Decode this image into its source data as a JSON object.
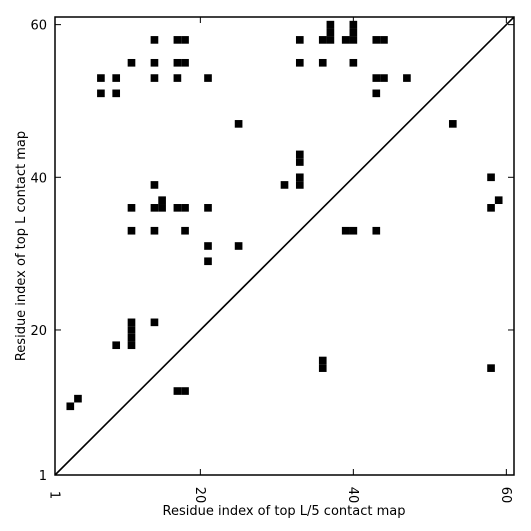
{
  "chart_data": {
    "type": "scatter",
    "xlabel": "Residue index of top L/5 contact map",
    "ylabel": "Residue index of top L contact map",
    "xlim": [
      1,
      61
    ],
    "ylim": [
      1,
      61
    ],
    "x_ticks": [
      "1",
      "20",
      "40",
      "60"
    ],
    "x_tick_values": [
      1,
      20,
      40,
      60
    ],
    "y_ticks": [
      "1",
      "20",
      "40",
      "60"
    ],
    "y_tick_values": [
      1,
      20,
      40,
      60
    ],
    "diagonal_line": true,
    "grid": false,
    "marker": "square",
    "marker_color": "#000000",
    "upper_triangle_points": [
      [
        14,
        58
      ],
      [
        17,
        58
      ],
      [
        18,
        58
      ],
      [
        33,
        58
      ],
      [
        36,
        58
      ],
      [
        37,
        58
      ],
      [
        37,
        59
      ],
      [
        37,
        60
      ],
      [
        39,
        58
      ],
      [
        40,
        58
      ],
      [
        40,
        59
      ],
      [
        40,
        60
      ],
      [
        43,
        58
      ],
      [
        44,
        58
      ],
      [
        11,
        55
      ],
      [
        14,
        55
      ],
      [
        17,
        55
      ],
      [
        18,
        55
      ],
      [
        33,
        55
      ],
      [
        36,
        55
      ],
      [
        40,
        55
      ],
      [
        7,
        53
      ],
      [
        9,
        53
      ],
      [
        14,
        53
      ],
      [
        17,
        53
      ],
      [
        21,
        53
      ],
      [
        43,
        53
      ],
      [
        44,
        53
      ],
      [
        47,
        53
      ],
      [
        7,
        51
      ],
      [
        9,
        51
      ],
      [
        43,
        51
      ],
      [
        25,
        47
      ],
      [
        53,
        47
      ],
      [
        33,
        43
      ],
      [
        33,
        42
      ],
      [
        31,
        39
      ],
      [
        33,
        40
      ],
      [
        33,
        39
      ],
      [
        14,
        39
      ],
      [
        15,
        37
      ],
      [
        14,
        36
      ],
      [
        15,
        36
      ],
      [
        17,
        36
      ],
      [
        18,
        36
      ],
      [
        21,
        36
      ],
      [
        11,
        36
      ],
      [
        11,
        33
      ],
      [
        14,
        33
      ],
      [
        18,
        33
      ],
      [
        39,
        33
      ],
      [
        40,
        33
      ],
      [
        43,
        33
      ],
      [
        21,
        31
      ],
      [
        25,
        31
      ],
      [
        21,
        29
      ],
      [
        11,
        21
      ],
      [
        11,
        20
      ],
      [
        14,
        21
      ],
      [
        9,
        18
      ],
      [
        11,
        18
      ],
      [
        11,
        19
      ]
    ],
    "lower_triangle_points": [
      [
        58,
        40
      ],
      [
        59,
        37
      ],
      [
        58,
        36
      ],
      [
        36,
        15
      ],
      [
        36,
        16
      ],
      [
        58,
        15
      ],
      [
        17,
        12
      ],
      [
        18,
        12
      ],
      [
        4,
        11
      ],
      [
        3,
        10
      ]
    ]
  }
}
